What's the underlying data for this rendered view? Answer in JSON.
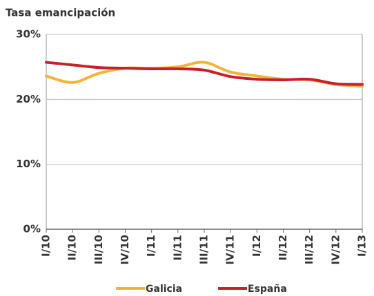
{
  "chart_data": {
    "type": "line",
    "title": "Tasa emancipación",
    "categories": [
      "I/10",
      "II/10",
      "III/10",
      "IV/10",
      "I/11",
      "II/11",
      "III/11",
      "IV/11",
      "I/12",
      "II/12",
      "III/12",
      "IV/12",
      "I/13"
    ],
    "series": [
      {
        "name": "Galicia",
        "color": "#f5b335",
        "values": [
          23.6,
          22.6,
          24.0,
          24.8,
          24.8,
          25.0,
          25.7,
          24.2,
          23.6,
          23.1,
          23.0,
          22.3,
          22.0
        ]
      },
      {
        "name": "España",
        "color": "#c8202a",
        "values": [
          25.7,
          25.3,
          24.9,
          24.8,
          24.7,
          24.7,
          24.5,
          23.5,
          23.1,
          23.0,
          23.1,
          22.4,
          22.3
        ]
      }
    ],
    "ylim": [
      0,
      30
    ],
    "yticks": [
      {
        "value": 0,
        "label": "0%"
      },
      {
        "value": 10,
        "label": "10%"
      },
      {
        "value": 20,
        "label": "20%"
      },
      {
        "value": 30,
        "label": "30%"
      }
    ],
    "grid": true,
    "legend": "bottom"
  }
}
